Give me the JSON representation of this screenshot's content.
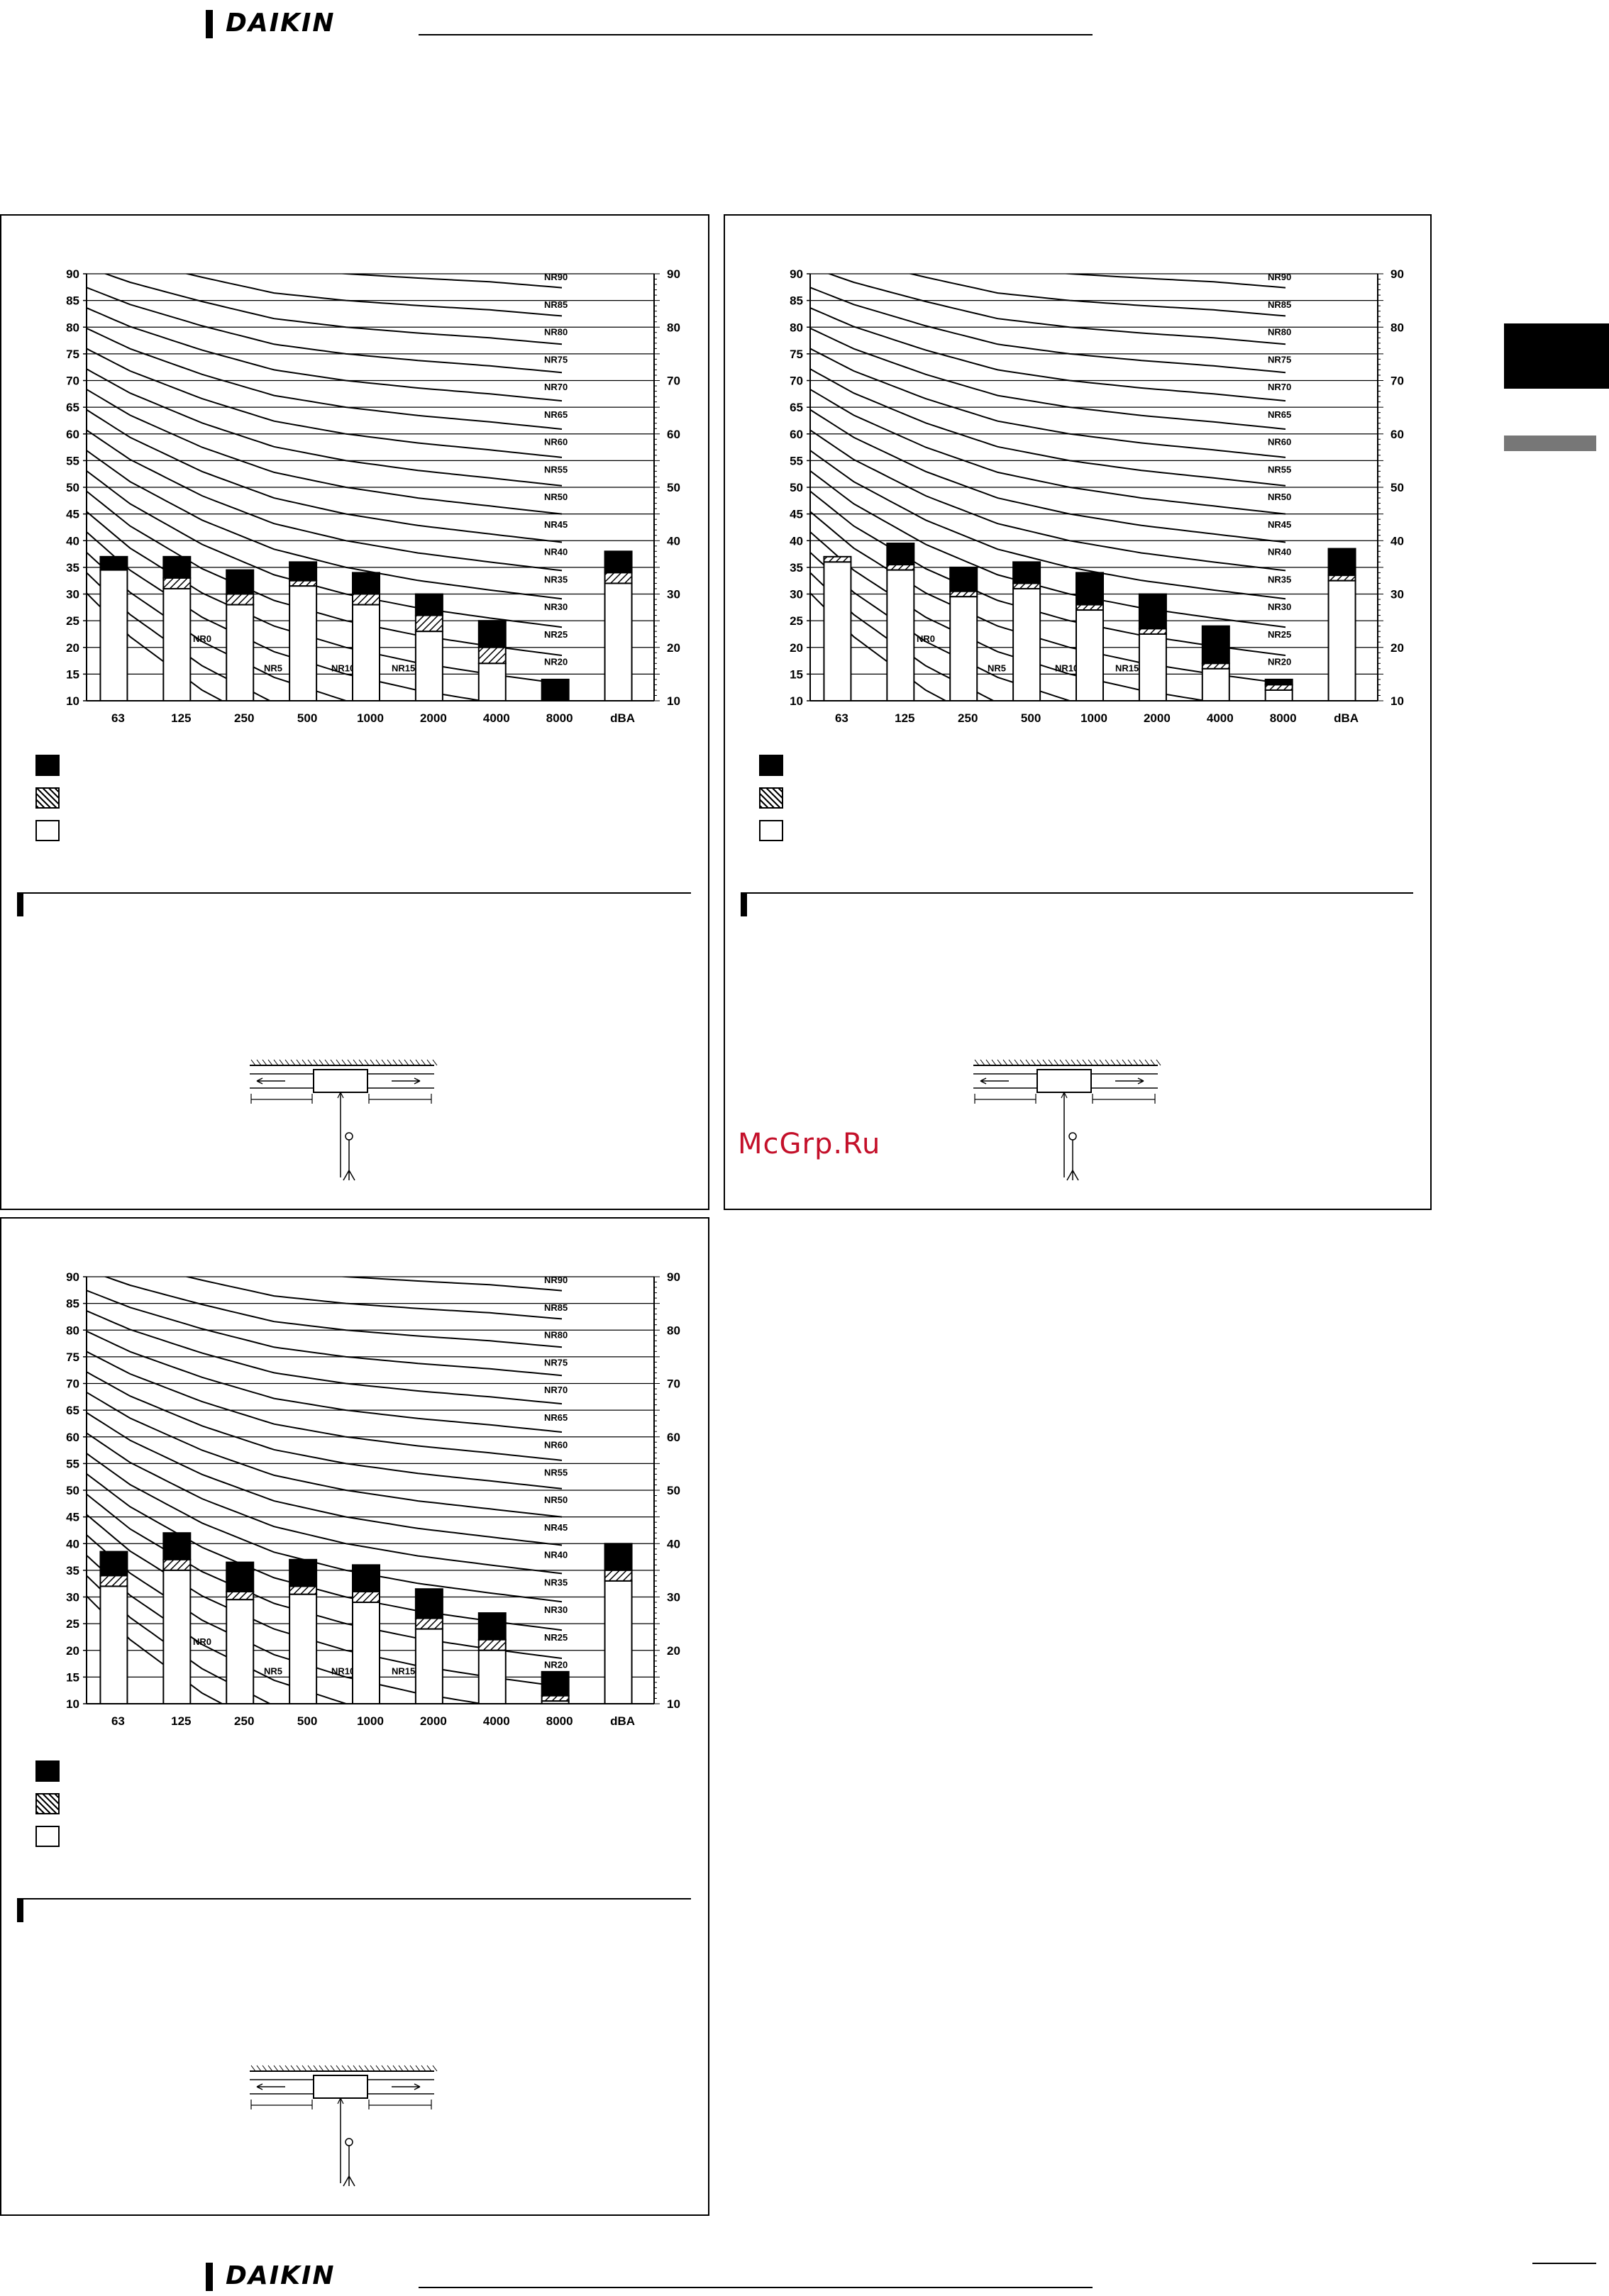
{
  "header": {
    "brand": "DAIKIN"
  },
  "footer": {
    "brand": "DAIKIN"
  },
  "watermark": "McGrp.Ru",
  "colors": {
    "accent": "#c4102a",
    "side_bar": "#777777"
  },
  "chart_common": {
    "type": "bar",
    "categories": [
      "63",
      "125",
      "250",
      "500",
      "1000",
      "2000",
      "4000",
      "8000",
      "dBA"
    ],
    "y_ticks": [
      10,
      15,
      20,
      25,
      30,
      35,
      40,
      45,
      50,
      55,
      60,
      65,
      70,
      75,
      80,
      85,
      90
    ],
    "y_ticks_right": [
      10,
      20,
      30,
      40,
      50,
      60,
      70,
      80,
      90
    ],
    "ylim": [
      10,
      90
    ],
    "nr_curves": [
      "NR0",
      "NR5",
      "NR10",
      "NR15",
      "NR20",
      "NR25",
      "NR30",
      "NR35",
      "NR40",
      "NR45",
      "NR50",
      "NR55",
      "NR60",
      "NR65",
      "NR70",
      "NR75",
      "NR80",
      "NR85",
      "NR90"
    ],
    "nr_values": [
      0,
      5,
      10,
      15,
      20,
      25,
      30,
      35,
      40,
      45,
      50,
      55,
      60,
      65,
      70,
      75,
      80,
      85,
      90
    ],
    "grid": true
  },
  "chart_data": [
    {
      "type": "bar",
      "series": [
        {
          "values": [
            34.5,
            31,
            28,
            31.5,
            28,
            23,
            17,
            10,
            32
          ]
        },
        {
          "values": [
            34.5,
            33,
            30,
            32.5,
            30,
            26,
            20,
            10,
            34
          ]
        },
        {
          "values": [
            37,
            37,
            34.5,
            36,
            34,
            30,
            25,
            14,
            38
          ]
        }
      ]
    },
    {
      "type": "bar",
      "series": [
        {
          "values": [
            36,
            34.5,
            29.5,
            31,
            27,
            22.5,
            16,
            12,
            32.5
          ]
        },
        {
          "values": [
            37,
            35.5,
            30.5,
            32,
            28,
            23.5,
            17,
            13,
            33.5
          ]
        },
        {
          "values": [
            37,
            39.5,
            35,
            36,
            34,
            30,
            24,
            14,
            38.5
          ]
        }
      ]
    },
    {
      "type": "bar",
      "series": [
        {
          "values": [
            32,
            35,
            29.5,
            30.5,
            29,
            24,
            20,
            10.5,
            33
          ]
        },
        {
          "values": [
            34,
            37,
            31,
            32,
            31,
            26,
            22,
            11.5,
            35
          ]
        },
        {
          "values": [
            38.5,
            42,
            36.5,
            37,
            36,
            31.5,
            27,
            16,
            40
          ]
        }
      ]
    }
  ]
}
